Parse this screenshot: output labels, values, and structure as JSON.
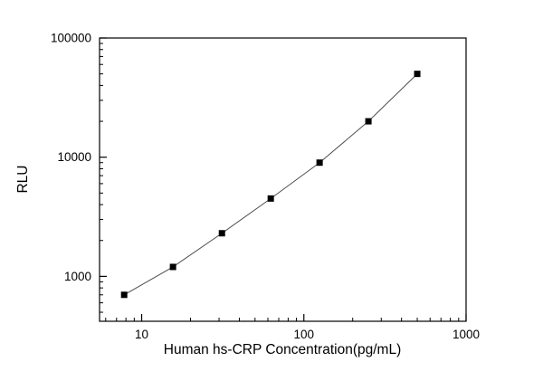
{
  "chart_data": {
    "type": "scatter",
    "x": [
      7.8,
      15.6,
      31.25,
      62.5,
      125,
      250,
      500
    ],
    "y": [
      700,
      1200,
      2300,
      4500,
      9000,
      20000,
      50000
    ],
    "title": "",
    "xlabel": "Human hs-CRP Concentration(pg/mL)",
    "ylabel": "RLU",
    "x_scale": "log",
    "y_scale": "log",
    "xlim": [
      5.5,
      1000
    ],
    "ylim": [
      420,
      100000
    ],
    "x_major_ticks": [
      10,
      100,
      1000
    ],
    "x_major_tick_labels": [
      "10",
      "100",
      "1000"
    ],
    "y_major_ticks": [
      1000,
      10000,
      100000
    ],
    "y_major_tick_labels": [
      "1000",
      "10000",
      "100000"
    ],
    "grid": false,
    "legend": "none",
    "marker": "filled-black-square",
    "line_color": "#4d4d4d",
    "marker_color": "#000000",
    "frame_color": "#000000",
    "background": "#ffffff"
  }
}
